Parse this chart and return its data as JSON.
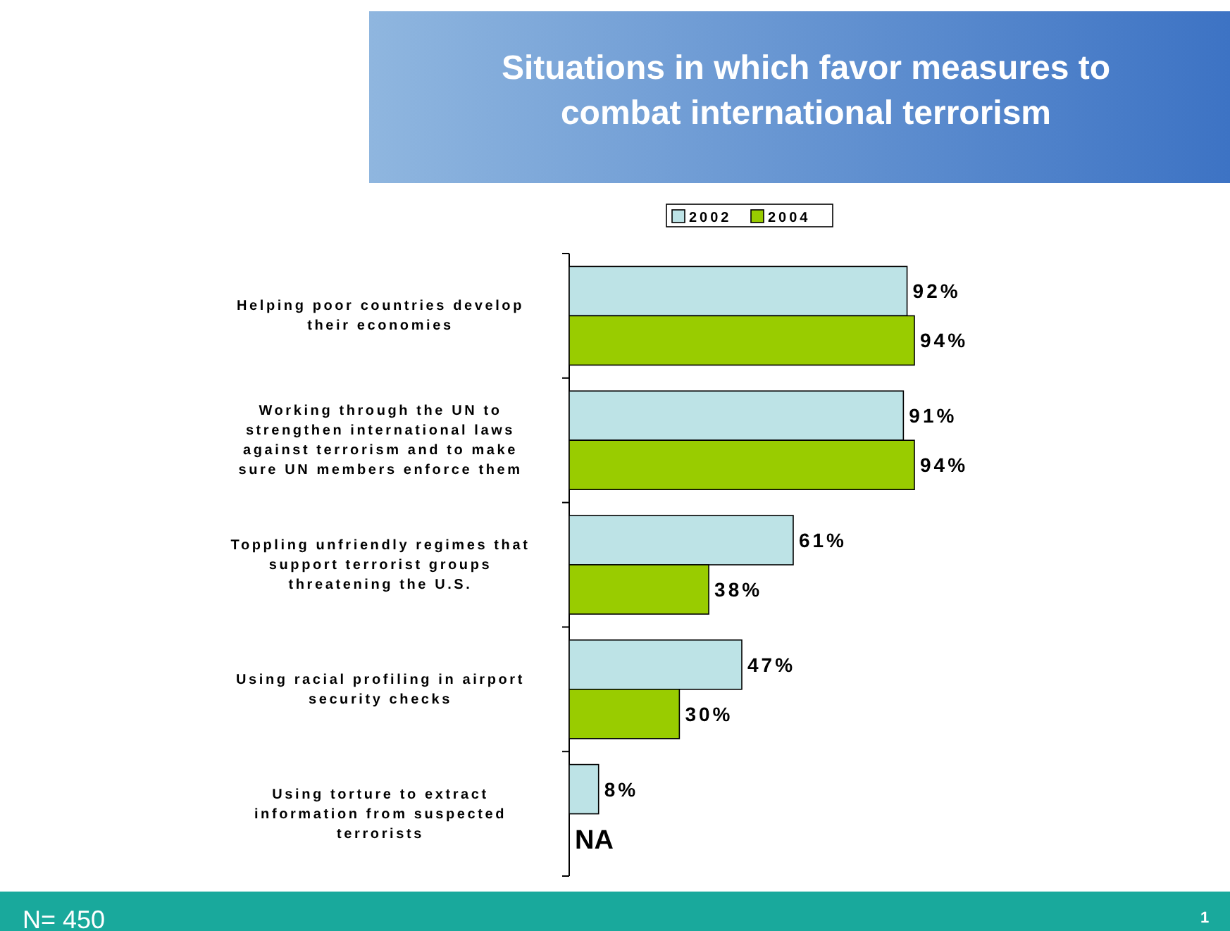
{
  "chart_data": {
    "type": "bar",
    "orientation": "horizontal",
    "title": "Situations in which favor measures to combat international terrorism",
    "categories": [
      "Helping poor countries develop their economies",
      "Working through the UN to strengthen international laws against terrorism and to make sure UN members enforce them",
      "Toppling unfriendly regimes that support terrorist groups threatening the U.S.",
      "Using racial profiling in airport security checks",
      "Using torture to extract information from suspected terrorists"
    ],
    "series": [
      {
        "name": "2002",
        "color": "#bde3e6",
        "values": [
          92,
          91,
          61,
          47,
          8
        ],
        "value_labels": [
          "92%",
          "91%",
          "61%",
          "47%",
          "8%"
        ]
      },
      {
        "name": "2004",
        "color": "#99cc00",
        "values": [
          94,
          94,
          38,
          30,
          null
        ],
        "value_labels": [
          "94%",
          "94%",
          "38%",
          "30%",
          "NA"
        ]
      }
    ],
    "tick_labels": "y",
    "legend": "top",
    "annotations": [
      "N= 450",
      "1"
    ]
  }
}
